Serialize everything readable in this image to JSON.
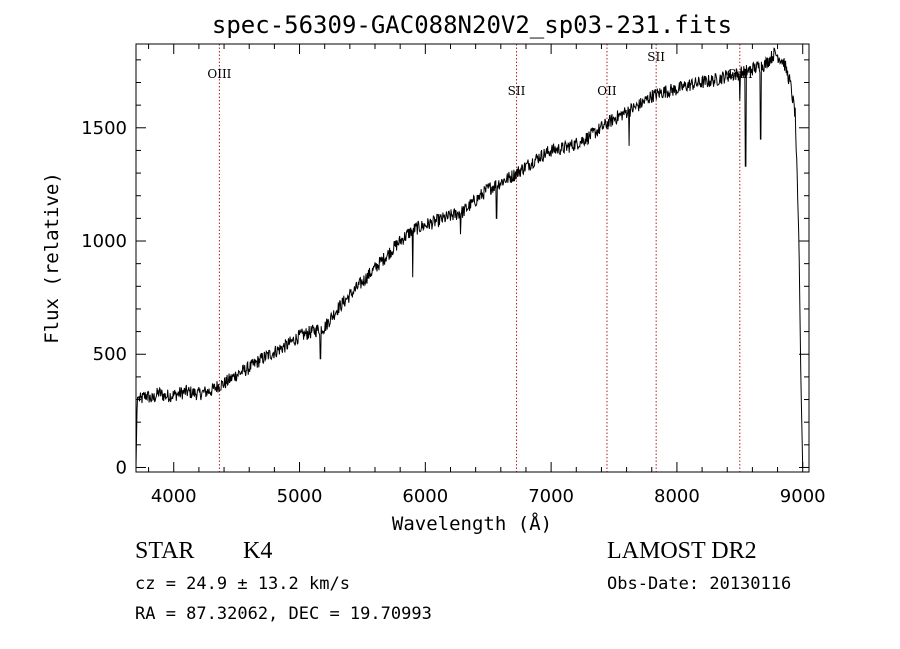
{
  "chart_data": {
    "type": "line",
    "title": "spec-56309-GAC088N20V2_sp03-231.fits",
    "xlabel": "Wavelength (Å)",
    "ylabel": "Flux (relative)",
    "xlim": [
      3700,
      9050
    ],
    "ylim": [
      -20,
      1870
    ],
    "x_ticks": [
      4000,
      5000,
      6000,
      7000,
      8000,
      9000
    ],
    "y_ticks": [
      0,
      500,
      1000,
      1500
    ],
    "grid": false,
    "series": [
      {
        "color": "#000000",
        "points": [
          [
            3700,
            0
          ],
          [
            3710,
            310
          ],
          [
            3740,
            300
          ],
          [
            3780,
            320
          ],
          [
            3830,
            300
          ],
          [
            3880,
            330
          ],
          [
            3930,
            315
          ],
          [
            4000,
            320
          ],
          [
            4100,
            335
          ],
          [
            4200,
            325
          ],
          [
            4300,
            340
          ],
          [
            4350,
            360
          ],
          [
            4400,
            370
          ],
          [
            4500,
            410
          ],
          [
            4600,
            440
          ],
          [
            4700,
            480
          ],
          [
            4800,
            510
          ],
          [
            4900,
            540
          ],
          [
            5000,
            580
          ],
          [
            5100,
            600
          ],
          [
            5200,
            620
          ],
          [
            5300,
            700
          ],
          [
            5400,
            760
          ],
          [
            5500,
            820
          ],
          [
            5600,
            880
          ],
          [
            5700,
            940
          ],
          [
            5800,
            1000
          ],
          [
            5900,
            1050
          ],
          [
            6000,
            1070
          ],
          [
            6100,
            1090
          ],
          [
            6200,
            1110
          ],
          [
            6300,
            1130
          ],
          [
            6400,
            1180
          ],
          [
            6500,
            1230
          ],
          [
            6600,
            1260
          ],
          [
            6700,
            1290
          ],
          [
            6800,
            1330
          ],
          [
            6900,
            1370
          ],
          [
            7000,
            1400
          ],
          [
            7100,
            1410
          ],
          [
            7200,
            1430
          ],
          [
            7300,
            1460
          ],
          [
            7400,
            1500
          ],
          [
            7500,
            1540
          ],
          [
            7600,
            1570
          ],
          [
            7700,
            1600
          ],
          [
            7800,
            1640
          ],
          [
            7900,
            1660
          ],
          [
            8000,
            1670
          ],
          [
            8100,
            1690
          ],
          [
            8200,
            1700
          ],
          [
            8300,
            1710
          ],
          [
            8400,
            1730
          ],
          [
            8500,
            1740
          ],
          [
            8600,
            1760
          ],
          [
            8700,
            1780
          ],
          [
            8780,
            1830
          ],
          [
            8850,
            1790
          ],
          [
            8900,
            1700
          ],
          [
            8940,
            1560
          ],
          [
            8970,
            1000
          ],
          [
            8985,
            400
          ],
          [
            9000,
            0
          ]
        ]
      }
    ],
    "absorption_dips": [
      [
        5165,
        480
      ],
      [
        5900,
        840
      ],
      [
        6280,
        1030
      ],
      [
        6565,
        1100
      ],
      [
        7620,
        1420
      ],
      [
        8500,
        1620
      ],
      [
        8545,
        1330
      ],
      [
        8665,
        1450
      ]
    ],
    "emission_lines": [
      {
        "label": "OIII",
        "wavelength": 4363
      },
      {
        "label": "SII",
        "wavelength": 6725
      },
      {
        "label": "OII",
        "wavelength": 7444
      },
      {
        "label": "SII",
        "wavelength": 7835
      },
      {
        "label": "CaII",
        "wavelength": 8500
      }
    ]
  },
  "footer": {
    "class_label": "STAR",
    "subclass": "K4",
    "survey": "LAMOST DR2",
    "cz": "cz = 24.9 ± 13.2 km/s",
    "obs_date": "Obs-Date: 20130116",
    "coords": "RA =  87.32062, DEC =  19.70993"
  }
}
